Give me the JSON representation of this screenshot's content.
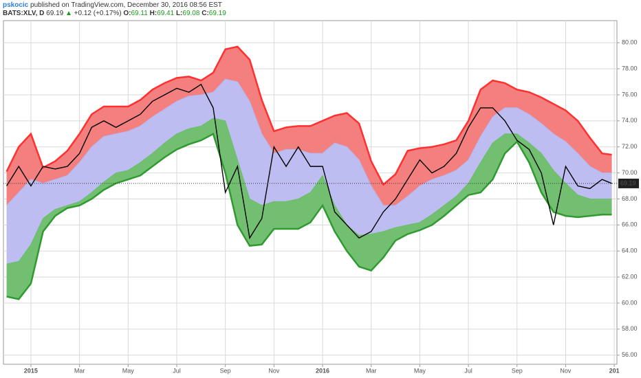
{
  "header": {
    "author": "pskocic",
    "published": " published on TradingView.com, December 30, 2016 08:56 EST",
    "symbol": "BATS:XLV, D",
    "price": "69.19",
    "arrow": "▲",
    "change": "+0.12 (+0.17%)",
    "o_label": "O:",
    "o": "69.11",
    "h_label": "H:",
    "h": "69.41",
    "l_label": "L:",
    "l": "69.08",
    "c_label": "C:",
    "c": "69.19"
  },
  "chart_data": {
    "type": "line",
    "x": [
      -1,
      -0.5,
      0,
      0.5,
      1,
      1.5,
      2,
      2.5,
      3,
      3.5,
      4,
      4.5,
      5,
      5.5,
      6,
      6.5,
      7,
      7.5,
      8,
      8.5,
      9,
      9.5,
      10,
      10.5,
      11,
      11.5,
      12,
      12.5,
      13,
      13.5,
      14,
      14.5,
      15,
      15.5,
      16,
      16.5,
      17,
      17.5,
      18,
      18.5,
      19,
      19.5,
      20,
      20.5,
      21,
      21.5,
      22,
      22.5,
      23,
      23.5,
      23.9
    ],
    "series": [
      {
        "color": "#ff3030",
        "fill": "#f47f7f",
        "values": [
          70.1,
          72,
          73,
          70.4,
          70.9,
          71.7,
          73,
          74.5,
          75.1,
          75.1,
          75.1,
          75.6,
          76.4,
          76.9,
          77.3,
          77.4,
          77.1,
          77.7,
          79.5,
          79.7,
          78.7,
          75.6,
          73.2,
          73.5,
          73.6,
          73.6,
          74,
          74.4,
          74.6,
          73.8,
          70.9,
          69.1,
          69.9,
          71.7,
          71.9,
          72,
          72.2,
          72.5,
          74,
          76.4,
          77.1,
          76.9,
          76.4,
          76.2,
          75.8,
          75.3,
          74.8,
          74,
          72.7,
          71.5,
          71.4
        ]
      },
      {
        "color": "#b7b7ef",
        "fill": "#bdbdf2",
        "values": [
          67.5,
          68.5,
          69.5,
          69.2,
          69.5,
          69.8,
          70.8,
          72,
          72.8,
          73,
          73.2,
          73.6,
          74.3,
          74.9,
          75.5,
          75.9,
          76,
          76.2,
          77.2,
          77,
          75.5,
          73,
          71.5,
          71.8,
          71.8,
          71.5,
          71.5,
          72.3,
          72,
          71,
          69,
          67.5,
          67.5,
          68.2,
          69,
          69.5,
          69.8,
          70.2,
          71,
          72.8,
          74.3,
          75,
          75,
          74.5,
          73.8,
          73,
          72.4,
          71.5,
          70.5,
          70,
          70
        ]
      },
      {
        "color": "#6cbd6c",
        "fill": "#72bf72",
        "values": [
          63,
          63.2,
          64.5,
          66.5,
          67.2,
          67.5,
          67.8,
          68.5,
          69.3,
          70,
          70.2,
          70.8,
          71.5,
          72.3,
          73,
          73.4,
          73.6,
          74.2,
          74,
          71,
          68,
          67.5,
          67.8,
          67.8,
          68,
          68.5,
          69.8,
          67.5,
          66,
          65.2,
          65.3,
          65.5,
          65.8,
          66,
          66.2,
          66.8,
          67.5,
          68.2,
          69.2,
          70.8,
          72.3,
          73,
          73,
          72.3,
          71.5,
          70.2,
          69.2,
          68.3,
          68,
          68,
          68
        ]
      },
      {
        "color": "#2f9a2f",
        "values": [
          60.5,
          60.3,
          61.5,
          65.5,
          66.7,
          67.3,
          67.5,
          68,
          68.7,
          69.2,
          69.5,
          69.8,
          70.5,
          71.2,
          71.8,
          72.2,
          72.5,
          73,
          70,
          66,
          64.4,
          64.5,
          65.7,
          65.7,
          65.7,
          66.2,
          67.5,
          65.5,
          64,
          62.8,
          62.5,
          63.5,
          64.8,
          65.3,
          65.6,
          66,
          66.7,
          67.5,
          68.3,
          68.5,
          69.5,
          71.5,
          72.4,
          70.8,
          68.5,
          67,
          66.7,
          66.6,
          66.7,
          66.8,
          66.8
        ]
      },
      {
        "color": "#000000",
        "values": [
          69,
          70.5,
          69,
          70.5,
          70.3,
          70.5,
          71.5,
          73.5,
          74,
          73.5,
          74,
          74.5,
          75.5,
          76,
          76.5,
          76.2,
          76.8,
          75,
          68.5,
          70.5,
          65,
          66.5,
          72,
          70.5,
          72,
          70.5,
          70.5,
          67,
          66,
          65,
          65.5,
          67,
          68,
          69.5,
          71,
          70,
          70.5,
          71.5,
          73.5,
          75,
          75,
          74,
          72.5,
          71.8,
          70,
          66,
          70.5,
          69,
          68.8,
          69.5,
          69.19
        ]
      }
    ],
    "xlim": [
      -1.13,
      24.11
    ],
    "xticks": [
      {
        "value": 0,
        "label": "2015"
      },
      {
        "value": 2,
        "label": "Mar"
      },
      {
        "value": 4,
        "label": "May"
      },
      {
        "value": 6,
        "label": "Jul"
      },
      {
        "value": 8,
        "label": "Sep"
      },
      {
        "value": 10,
        "label": "Nov"
      },
      {
        "value": 12,
        "label": "2016"
      },
      {
        "value": 14,
        "label": "Mar"
      },
      {
        "value": 16,
        "label": "May"
      },
      {
        "value": 18,
        "label": "Jul"
      },
      {
        "value": 20,
        "label": "Sep"
      },
      {
        "value": 22,
        "label": "Nov"
      },
      {
        "value": 24,
        "label": "201"
      }
    ],
    "ylim": [
      55.3,
      81.7
    ],
    "yticks": [
      {
        "value": 56,
        "label": "56.00"
      },
      {
        "value": 58,
        "label": "58.00"
      },
      {
        "value": 60,
        "label": "60.00"
      },
      {
        "value": 62,
        "label": "62.00"
      },
      {
        "value": 64,
        "label": "64.00"
      },
      {
        "value": 66,
        "label": "66.00"
      },
      {
        "value": 68,
        "label": "68.00"
      },
      {
        "value": 70,
        "label": "70.00"
      },
      {
        "value": 72,
        "label": "72.00"
      },
      {
        "value": 74,
        "label": "74.00"
      },
      {
        "value": 76,
        "label": "76.00"
      },
      {
        "value": 78,
        "label": "78.00"
      },
      {
        "value": 80,
        "label": "80.00"
      }
    ],
    "grid": true
  }
}
